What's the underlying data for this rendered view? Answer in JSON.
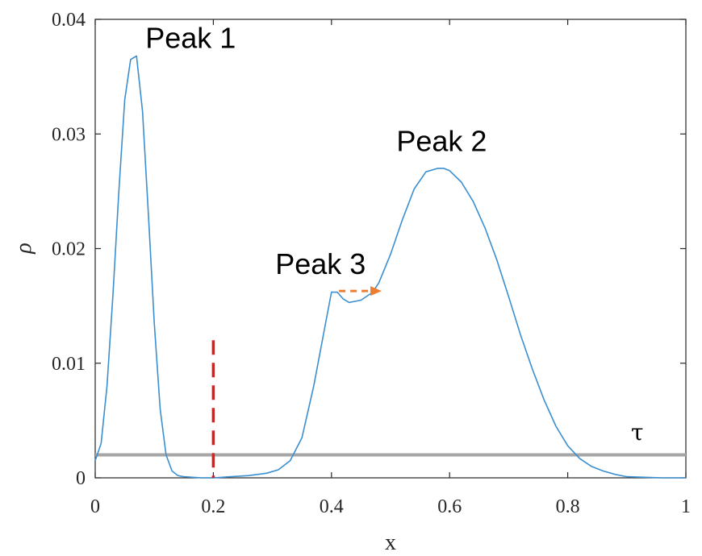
{
  "chart_data": {
    "type": "line",
    "xlabel": "x",
    "ylabel": "ρ",
    "xlim": [
      0,
      1
    ],
    "ylim": [
      0,
      0.04
    ],
    "x_ticks": [
      "0",
      "0.2",
      "0.4",
      "0.6",
      "0.8",
      "1"
    ],
    "y_ticks": [
      "0",
      "0.01",
      "0.02",
      "0.03",
      "0.04"
    ],
    "series": [
      {
        "color": "#3a8fd0",
        "x": [
          0.0,
          0.01,
          0.02,
          0.03,
          0.04,
          0.05,
          0.06,
          0.07,
          0.08,
          0.09,
          0.1,
          0.11,
          0.12,
          0.13,
          0.14,
          0.15,
          0.18,
          0.2,
          0.23,
          0.26,
          0.29,
          0.31,
          0.33,
          0.35,
          0.37,
          0.39,
          0.4,
          0.41,
          0.42,
          0.43,
          0.45,
          0.47,
          0.48,
          0.5,
          0.52,
          0.54,
          0.56,
          0.58,
          0.59,
          0.6,
          0.62,
          0.64,
          0.66,
          0.68,
          0.7,
          0.72,
          0.74,
          0.76,
          0.78,
          0.8,
          0.82,
          0.84,
          0.86,
          0.88,
          0.9,
          0.93,
          0.96,
          1.0
        ],
        "y": [
          0.0015,
          0.003,
          0.008,
          0.016,
          0.025,
          0.033,
          0.0365,
          0.0368,
          0.032,
          0.023,
          0.0135,
          0.006,
          0.002,
          0.0006,
          0.0002,
          0.0001,
          0.0,
          0.0,
          0.0001,
          0.0002,
          0.0004,
          0.0007,
          0.0015,
          0.0035,
          0.008,
          0.0135,
          0.0162,
          0.0162,
          0.0156,
          0.0153,
          0.0155,
          0.0162,
          0.017,
          0.0195,
          0.0225,
          0.0252,
          0.0267,
          0.027,
          0.027,
          0.0268,
          0.0258,
          0.0241,
          0.0218,
          0.019,
          0.0158,
          0.0125,
          0.0095,
          0.0068,
          0.0045,
          0.0028,
          0.0017,
          0.001,
          0.0006,
          0.0003,
          0.0001,
          5e-05,
          0.0,
          0.0
        ]
      }
    ],
    "threshold": {
      "label": "τ",
      "y": 0.002,
      "color": "#a6a6a6"
    },
    "marker_line": {
      "x": 0.2,
      "y_top": 0.012,
      "color": "#e31a1c"
    },
    "arrow": {
      "from": [
        0.41,
        0.0163
      ],
      "to": [
        0.485,
        0.0163
      ],
      "color": "#ed7d31"
    },
    "annotations": [
      {
        "text": "Peak 1",
        "x": 0.085,
        "y": 0.0375
      },
      {
        "text": "Peak 2",
        "x": 0.51,
        "y": 0.0285
      },
      {
        "text": "Peak 3",
        "x": 0.305,
        "y": 0.0178
      }
    ]
  }
}
